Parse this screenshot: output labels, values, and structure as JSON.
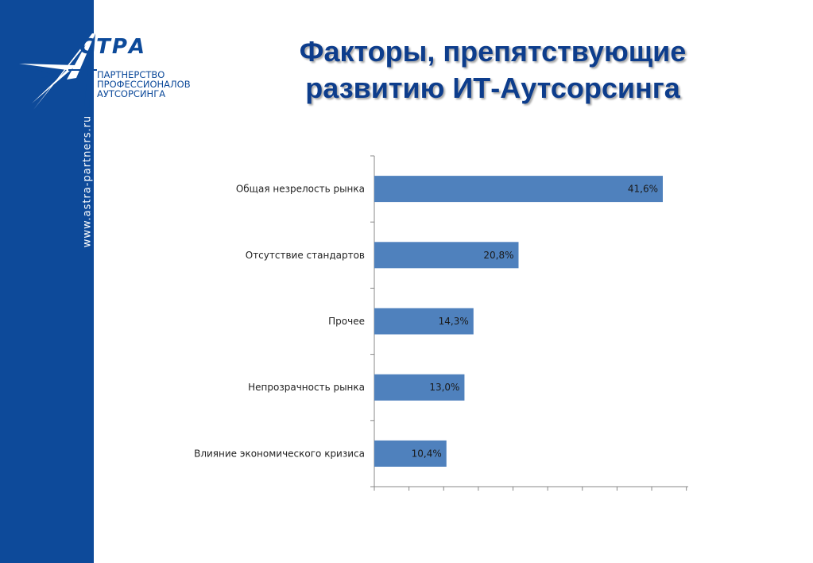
{
  "brand": {
    "logo_word": "СТРА",
    "tagline": [
      "ПАРТНЕРСТВО",
      "ПРОФЕССИОНАЛОВ",
      "АУТСОРСИНГА"
    ],
    "site_url": "www.astra-partners.ru",
    "colors": {
      "primary": "#0d4a9a",
      "bar": "#4f81bd"
    }
  },
  "title": {
    "line1": "Факторы, препятствующие",
    "line2": "развитию ИТ-Аутсорсинга"
  },
  "chart_data": {
    "type": "bar",
    "orientation": "horizontal",
    "title": "",
    "xlabel": "",
    "ylabel": "",
    "xlim": [
      0,
      45
    ],
    "grid": false,
    "legend": "none",
    "categories": [
      "Общая незрелость рынка",
      "Отсутствие стандартов",
      "Прочее",
      "Непрозрачность рынка",
      "Влияние экономического кризиса"
    ],
    "values": [
      41.6,
      20.8,
      14.3,
      13.0,
      10.4
    ],
    "value_labels": [
      "41,6%",
      "20,8%",
      "14,3%",
      "13,0%",
      "10,4%"
    ]
  }
}
